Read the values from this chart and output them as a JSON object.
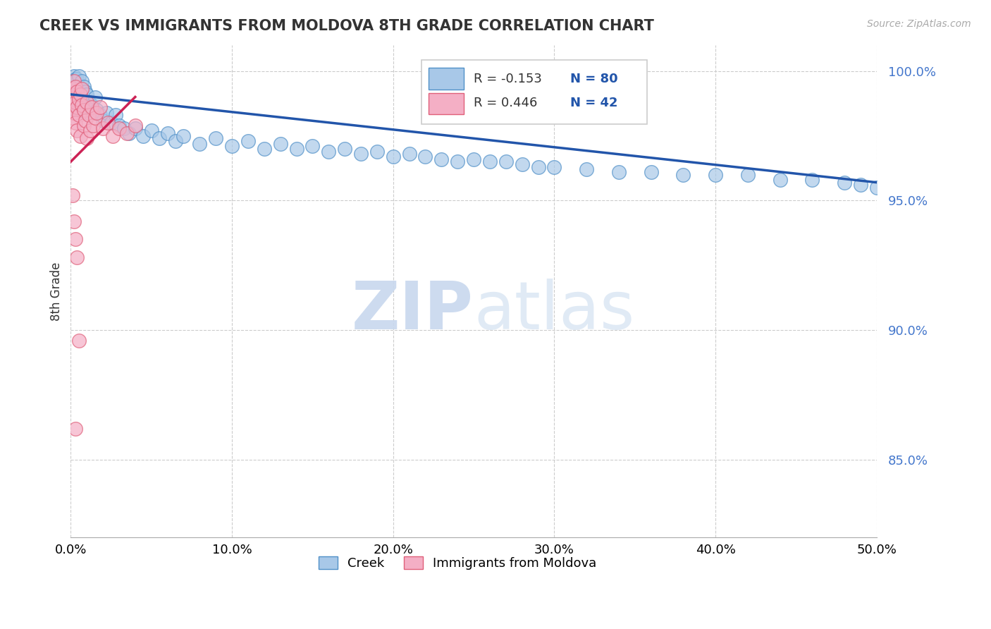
{
  "title": "CREEK VS IMMIGRANTS FROM MOLDOVA 8TH GRADE CORRELATION CHART",
  "source_text": "Source: ZipAtlas.com",
  "ylabel": "8th Grade",
  "xlim": [
    0.0,
    0.5
  ],
  "ylim": [
    0.82,
    1.01
  ],
  "xtick_labels": [
    "0.0%",
    "",
    "10.0%",
    "",
    "20.0%",
    "",
    "30.0%",
    "",
    "40.0%",
    "",
    "50.0%"
  ],
  "xtick_vals": [
    0.0,
    0.05,
    0.1,
    0.15,
    0.2,
    0.25,
    0.3,
    0.35,
    0.4,
    0.45,
    0.5
  ],
  "xtick_display_labels": [
    "0.0%",
    "10.0%",
    "20.0%",
    "30.0%",
    "40.0%",
    "50.0%"
  ],
  "xtick_display_vals": [
    0.0,
    0.1,
    0.2,
    0.3,
    0.4,
    0.5
  ],
  "ytick_labels": [
    "85.0%",
    "90.0%",
    "95.0%",
    "100.0%"
  ],
  "ytick_vals": [
    0.85,
    0.9,
    0.95,
    1.0
  ],
  "hgrid_vals": [
    0.85,
    0.9,
    0.95,
    1.0
  ],
  "blue_color": "#a8c8e8",
  "pink_color": "#f4afc5",
  "blue_edge_color": "#5090c8",
  "pink_edge_color": "#e0607a",
  "blue_line_color": "#2255aa",
  "pink_line_color": "#cc2255",
  "R_blue": -0.153,
  "N_blue": 80,
  "R_pink": 0.446,
  "N_pink": 42,
  "legend_label_blue": "Creek",
  "legend_label_pink": "Immigrants from Moldova",
  "watermark_zip": "ZIP",
  "watermark_atlas": "atlas",
  "background_color": "#ffffff",
  "grid_color": "#cccccc",
  "blue_scatter_x": [
    0.001,
    0.001,
    0.002,
    0.002,
    0.002,
    0.003,
    0.003,
    0.003,
    0.004,
    0.004,
    0.004,
    0.005,
    0.005,
    0.005,
    0.006,
    0.006,
    0.007,
    0.007,
    0.007,
    0.008,
    0.008,
    0.009,
    0.009,
    0.01,
    0.01,
    0.011,
    0.012,
    0.013,
    0.014,
    0.015,
    0.016,
    0.018,
    0.02,
    0.022,
    0.025,
    0.028,
    0.03,
    0.033,
    0.036,
    0.04,
    0.045,
    0.05,
    0.055,
    0.06,
    0.065,
    0.07,
    0.08,
    0.09,
    0.1,
    0.11,
    0.12,
    0.13,
    0.14,
    0.15,
    0.16,
    0.17,
    0.18,
    0.19,
    0.2,
    0.21,
    0.22,
    0.23,
    0.24,
    0.25,
    0.26,
    0.27,
    0.28,
    0.29,
    0.3,
    0.32,
    0.34,
    0.36,
    0.38,
    0.4,
    0.42,
    0.44,
    0.46,
    0.48,
    0.49,
    0.5
  ],
  "blue_scatter_y": [
    0.99,
    0.995,
    0.988,
    0.992,
    0.998,
    0.985,
    0.99,
    0.997,
    0.988,
    0.993,
    0.997,
    0.985,
    0.992,
    0.998,
    0.987,
    0.993,
    0.985,
    0.99,
    0.996,
    0.988,
    0.994,
    0.986,
    0.992,
    0.984,
    0.991,
    0.988,
    0.985,
    0.987,
    0.984,
    0.99,
    0.985,
    0.983,
    0.981,
    0.984,
    0.98,
    0.983,
    0.979,
    0.978,
    0.976,
    0.978,
    0.975,
    0.977,
    0.974,
    0.976,
    0.973,
    0.975,
    0.972,
    0.974,
    0.971,
    0.973,
    0.97,
    0.972,
    0.97,
    0.971,
    0.969,
    0.97,
    0.968,
    0.969,
    0.967,
    0.968,
    0.967,
    0.966,
    0.965,
    0.966,
    0.965,
    0.965,
    0.964,
    0.963,
    0.963,
    0.962,
    0.961,
    0.961,
    0.96,
    0.96,
    0.96,
    0.958,
    0.958,
    0.957,
    0.956,
    0.955
  ],
  "pink_scatter_x": [
    0.001,
    0.001,
    0.001,
    0.002,
    0.002,
    0.002,
    0.003,
    0.003,
    0.003,
    0.004,
    0.004,
    0.004,
    0.005,
    0.005,
    0.006,
    0.006,
    0.007,
    0.007,
    0.008,
    0.008,
    0.009,
    0.01,
    0.01,
    0.011,
    0.012,
    0.013,
    0.014,
    0.015,
    0.016,
    0.018,
    0.02,
    0.023,
    0.026,
    0.03,
    0.035,
    0.04,
    0.001,
    0.002,
    0.003,
    0.004,
    0.005,
    0.003
  ],
  "pink_scatter_y": [
    0.993,
    0.987,
    0.982,
    0.99,
    0.984,
    0.996,
    0.988,
    0.98,
    0.994,
    0.986,
    0.992,
    0.977,
    0.989,
    0.983,
    0.991,
    0.975,
    0.987,
    0.993,
    0.979,
    0.985,
    0.981,
    0.988,
    0.974,
    0.983,
    0.977,
    0.986,
    0.979,
    0.982,
    0.984,
    0.986,
    0.978,
    0.98,
    0.975,
    0.978,
    0.976,
    0.979,
    0.952,
    0.942,
    0.935,
    0.928,
    0.896,
    0.862
  ],
  "blue_line_x0": 0.0,
  "blue_line_y0": 0.991,
  "blue_line_x1": 0.5,
  "blue_line_y1": 0.957,
  "pink_line_x0": 0.0,
  "pink_line_y0": 0.965,
  "pink_line_x1": 0.04,
  "pink_line_y1": 0.99
}
